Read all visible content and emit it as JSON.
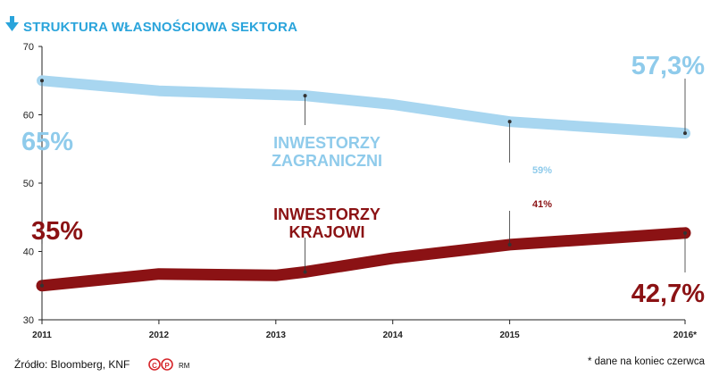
{
  "chart_data": {
    "type": "line",
    "title": "STRUKTURA WŁASNOŚCIOWA SEKTORA",
    "categories": [
      "2011",
      "2012",
      "2013",
      "2014",
      "2015",
      "2016*"
    ],
    "x": [
      2011,
      2012,
      2013,
      2014,
      2015,
      2016.5
    ],
    "ylim": [
      30,
      70
    ],
    "yticks": [
      30,
      40,
      50,
      60,
      70
    ],
    "grid": false,
    "series": [
      {
        "name": "INWESTORZY ZAGRANICZNI",
        "name_lines": [
          "INWESTORZY",
          "ZAGRANICZNI"
        ],
        "color": "#a8d6f0",
        "points": [
          {
            "x": 2011,
            "y": 65
          },
          {
            "x": 2012,
            "y": 63.5
          },
          {
            "x": 2013.25,
            "y": 62.8
          },
          {
            "x": 2014,
            "y": 61.5
          },
          {
            "x": 2015,
            "y": 59
          },
          {
            "x": 2016.5,
            "y": 57.3
          }
        ]
      },
      {
        "name": "INWESTORZY KRAJOWI",
        "name_lines": [
          "INWESTORZY",
          "KRAJOWI"
        ],
        "color": "#8b1214",
        "points": [
          {
            "x": 2011,
            "y": 35
          },
          {
            "x": 2012,
            "y": 36.7
          },
          {
            "x": 2013,
            "y": 36.5
          },
          {
            "x": 2013.25,
            "y": 37
          },
          {
            "x": 2014,
            "y": 39
          },
          {
            "x": 2015,
            "y": 41
          },
          {
            "x": 2016.5,
            "y": 42.7
          }
        ]
      }
    ],
    "annotations": {
      "foreign_start": "65%",
      "foreign_2015": "59%",
      "foreign_end": "57,3%",
      "domestic_start": "35%",
      "domestic_2015": "41%",
      "domestic_end": "42,7%"
    }
  },
  "footer": {
    "source": "Źródło: Bloomberg, KNF",
    "author": "RM",
    "note": "* dane na koniec czerwca"
  },
  "colors": {
    "title": "#2aa4db",
    "foreign": "#a8d6f0",
    "domestic": "#8b1214",
    "axis": "#222222"
  }
}
